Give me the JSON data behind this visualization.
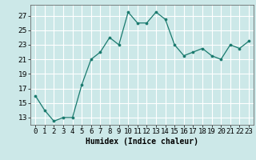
{
  "x": [
    0,
    1,
    2,
    3,
    4,
    5,
    6,
    7,
    8,
    9,
    10,
    11,
    12,
    13,
    14,
    15,
    16,
    17,
    18,
    19,
    20,
    21,
    22,
    23
  ],
  "y": [
    16.0,
    14.0,
    12.5,
    13.0,
    13.0,
    17.5,
    21.0,
    22.0,
    24.0,
    23.0,
    27.5,
    26.0,
    26.0,
    27.5,
    26.5,
    23.0,
    21.5,
    22.0,
    22.5,
    21.5,
    21.0,
    23.0,
    22.5,
    23.5
  ],
  "line_color": "#1a7a6e",
  "marker_color": "#1a7a6e",
  "bg_color": "#cce8e8",
  "grid_color": "#ffffff",
  "xlabel": "Humidex (Indice chaleur)",
  "xlim": [
    -0.5,
    23.5
  ],
  "ylim": [
    12,
    28.5
  ],
  "yticks": [
    13,
    15,
    17,
    19,
    21,
    23,
    25,
    27
  ],
  "xticks": [
    0,
    1,
    2,
    3,
    4,
    5,
    6,
    7,
    8,
    9,
    10,
    11,
    12,
    13,
    14,
    15,
    16,
    17,
    18,
    19,
    20,
    21,
    22,
    23
  ],
  "label_fontsize": 7,
  "tick_fontsize": 6.5
}
